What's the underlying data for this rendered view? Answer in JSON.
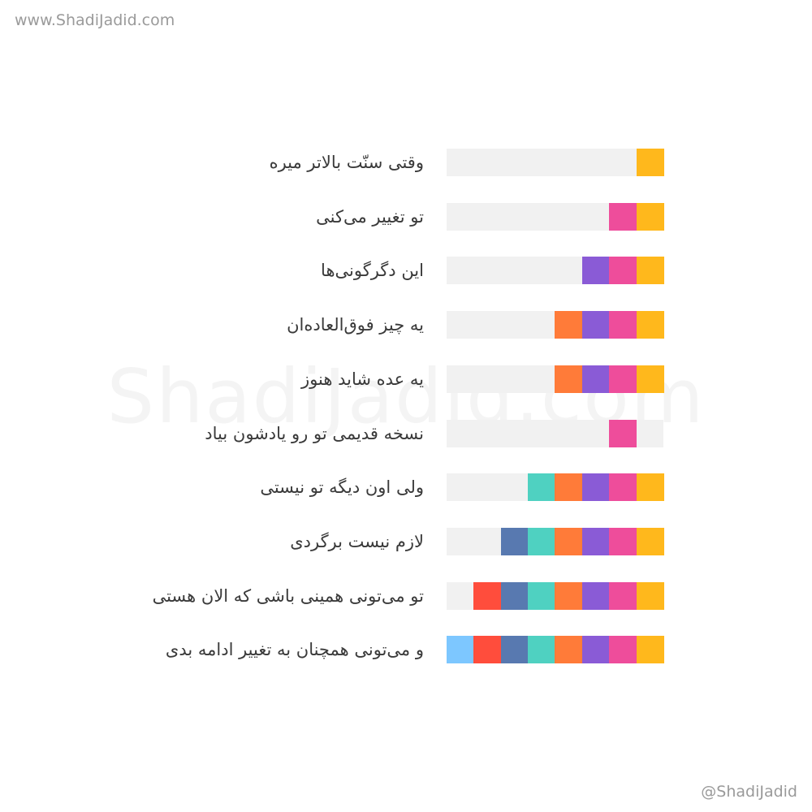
{
  "header": {
    "site_url": "www.ShadiJadid.com"
  },
  "watermark": "ShadiJadid.com",
  "footer": {
    "handle": "@ShadiJadid"
  },
  "colors": [
    "#ffb81c",
    "#ee4d9b",
    "#8a5bd6",
    "#ff7b39",
    "#4fd1c1",
    "#5879b0",
    "#ff4d3c",
    "#7dc7ff"
  ],
  "track_color": "#f1f1f1",
  "rows": [
    {
      "text": "وقتی سنّت بالاتر میره",
      "segments": [
        0
      ]
    },
    {
      "text": "تو تغییر می‌کنی",
      "segments": [
        1,
        0
      ]
    },
    {
      "text": "این دگرگونی‌ها",
      "segments": [
        2,
        1,
        0
      ]
    },
    {
      "text": "یه چیز فوق‌العاده‌ان",
      "segments": [
        3,
        2,
        1,
        0
      ]
    },
    {
      "text": "یه عده شاید هنوز",
      "segments": [
        3,
        2,
        1,
        0
      ]
    },
    {
      "text": "نسخه قدیمی تو رو یادشون بیاد",
      "segments": [
        1,
        null
      ]
    },
    {
      "text": "ولی اون دیگه تو نیستی",
      "segments": [
        4,
        3,
        2,
        1,
        0
      ]
    },
    {
      "text": "لازم نیست برگردی",
      "segments": [
        5,
        4,
        3,
        2,
        1,
        0
      ]
    },
    {
      "text": "تو می‌تونی همینی باشی که الان هستی",
      "segments": [
        6,
        5,
        4,
        3,
        2,
        1,
        0
      ]
    },
    {
      "text": "و می‌تونی همچنان به تغییر ادامه بدی",
      "segments": [
        7,
        6,
        5,
        4,
        3,
        2,
        1,
        0
      ]
    }
  ]
}
